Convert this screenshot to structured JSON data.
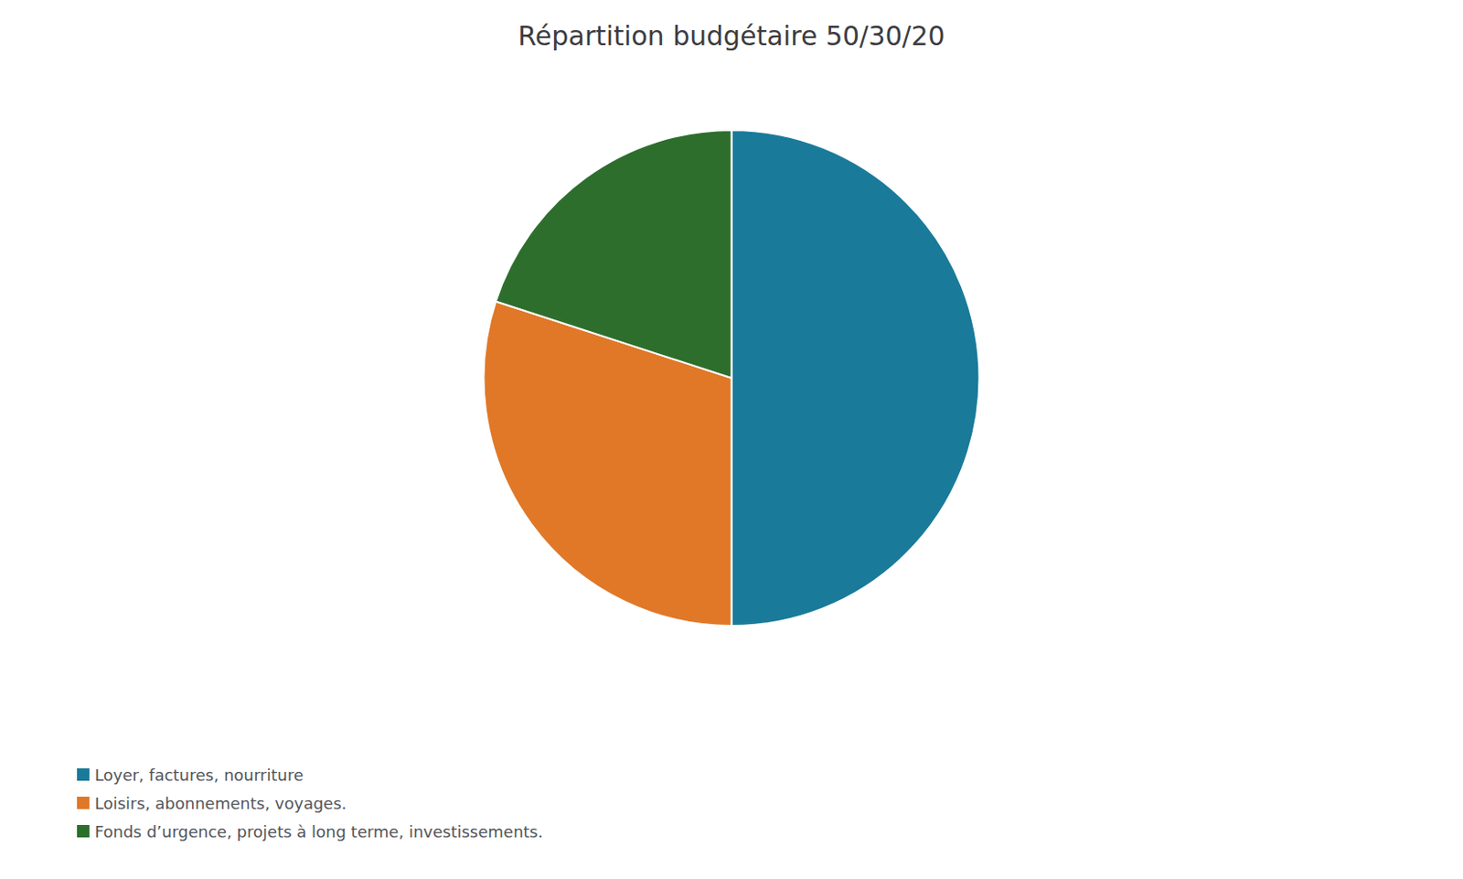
{
  "chart_data": {
    "type": "pie",
    "title": "Répartition budgétaire 50/30/20",
    "categories": [
      "Loyer, factures, nourriture",
      "Loisirs, abonnements, voyages.",
      "Fonds d’urgence, projets à long terme, investissements."
    ],
    "values": [
      50,
      30,
      20
    ],
    "colors": [
      "#1a7a9a",
      "#e07828",
      "#2d6e2d"
    ],
    "legend": "lower left"
  }
}
